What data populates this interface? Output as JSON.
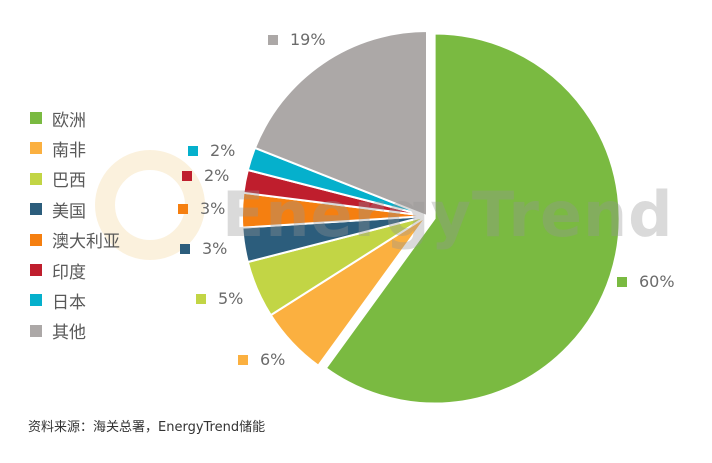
{
  "chart_data": {
    "type": "pie",
    "categories": [
      "欧洲",
      "南非",
      "巴西",
      "美国",
      "澳大利亚",
      "印度",
      "日本",
      "其他"
    ],
    "values": [
      60,
      6,
      5,
      3,
      3,
      2,
      2,
      19
    ],
    "labels": [
      "60%",
      "6%",
      "5%",
      "3%",
      "3%",
      "2%",
      "2%",
      "19%"
    ],
    "colors": [
      "#7aba41",
      "#fbb040",
      "#c2d545",
      "#2c5d7c",
      "#f57f10",
      "#bf1e2d",
      "#05b0cc",
      "#aca8a7"
    ],
    "exploded": [
      "欧洲"
    ],
    "legend": "left",
    "start": "12 o'clock, clockwise"
  },
  "source": "资料来源：海关总署，EnergyTrend储能",
  "watermark": "EnergyTrend"
}
